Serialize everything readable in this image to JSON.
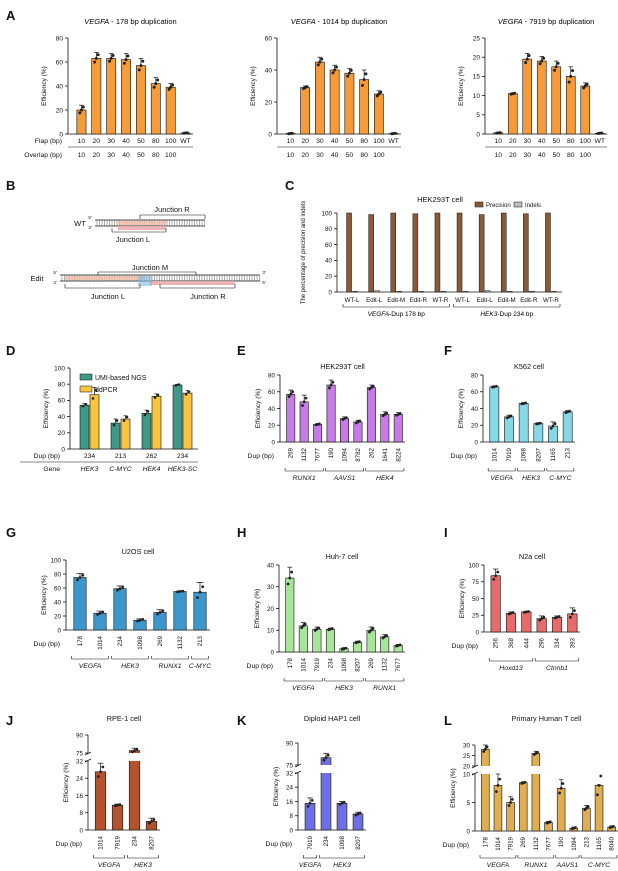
{
  "colors": {
    "orange": "#F59B3A",
    "brown": "#8C5A36",
    "gray": "#BDBDBD",
    "teal": "#3E9A87",
    "yellow": "#F9C53E",
    "purple": "#C77BE6",
    "cyan": "#86D8E6",
    "blue": "#3E97CC",
    "green": "#A7E69A",
    "red": "#E86B6B",
    "rust": "#B2532E",
    "indigo": "#6E6FE3",
    "gold": "#E0AE50",
    "dna_l": "#F1C0A8",
    "dna_r": "#E7A8A8"
  },
  "panels": {
    "A": {
      "label": "A"
    },
    "B": {
      "label": "B"
    },
    "C": {
      "label": "C"
    },
    "D": {
      "label": "D"
    },
    "E": {
      "label": "E"
    },
    "F": {
      "label": "F"
    },
    "G": {
      "label": "G"
    },
    "H": {
      "label": "H"
    },
    "I": {
      "label": "I"
    },
    "J": {
      "label": "J"
    },
    "K": {
      "label": "K"
    },
    "L": {
      "label": "L"
    }
  },
  "rowlabels": {
    "flap": "Flap (bp)",
    "overlap": "Overlap (bp)",
    "dup": "Dup (bp)",
    "gene": "Gene"
  },
  "diagram": {
    "wt_label": "WT",
    "edit_label": "Edit",
    "junction_l": "Junction L",
    "junction_r": "Junction R",
    "junction_m": "Junction M",
    "strand_5": "5'",
    "strand_3": "3'"
  },
  "chart_data": [
    {
      "id": "A1",
      "type": "bar",
      "title_gene": "VEGFA",
      "title_rest": " - 178 bp duplication",
      "ylabel": "Efficiency (%)",
      "ylim": [
        0,
        80
      ],
      "yticks": [
        0,
        20,
        40,
        60,
        80
      ],
      "categories": [
        "10",
        "20",
        "30",
        "40",
        "50",
        "80",
        "100",
        "WT"
      ],
      "overlap": [
        "10",
        "20",
        "30",
        "40",
        "50",
        "80",
        "100"
      ],
      "values": [
        20,
        63,
        63,
        62,
        57,
        42,
        39,
        0.8
      ],
      "errors": [
        4,
        5,
        4,
        5,
        6,
        5,
        3,
        0.3
      ],
      "color": "orange"
    },
    {
      "id": "A2",
      "type": "bar",
      "title_gene": "VEGFA",
      "title_rest": " - 1014 bp duplication",
      "ylabel": "Efficiency (%)",
      "ylim": [
        0,
        60
      ],
      "yticks": [
        0,
        20,
        40,
        60
      ],
      "categories": [
        "10",
        "20",
        "30",
        "40",
        "50",
        "80",
        "100",
        "WT"
      ],
      "overlap": [
        "10",
        "20",
        "30",
        "40",
        "50",
        "80",
        "100"
      ],
      "values": [
        0.3,
        29,
        45,
        40,
        38,
        34,
        25,
        0.3
      ],
      "errors": [
        0.2,
        1,
        3,
        3,
        3,
        6,
        2,
        0.2
      ],
      "color": "orange"
    },
    {
      "id": "A3",
      "type": "bar",
      "title_gene": "VEGFA",
      "title_rest": " - 7919 bp duplication",
      "ylabel": "Efficiency (%)",
      "ylim": [
        0,
        25
      ],
      "yticks": [
        0,
        5,
        10,
        15,
        20,
        25
      ],
      "categories": [
        "10",
        "20",
        "30",
        "40",
        "50",
        "80",
        "100",
        "WT"
      ],
      "overlap": [
        "10",
        "20",
        "30",
        "40",
        "50",
        "80",
        "100"
      ],
      "values": [
        0.3,
        10.5,
        19.5,
        19,
        17.5,
        15,
        12.5,
        0.2
      ],
      "errors": [
        0.1,
        0.2,
        1.5,
        1.2,
        1.5,
        2.5,
        0.8,
        0.1
      ],
      "color": "orange"
    },
    {
      "id": "C",
      "type": "bar",
      "title": "HEK293T cell",
      "ylabel": "The percentage of precision and indels",
      "ylim": [
        0,
        100
      ],
      "yticks": [
        0,
        20,
        40,
        60,
        80,
        100
      ],
      "categories": [
        "WT-L",
        "Edit-L",
        "Edit-M",
        "Edit-R",
        "WT-R",
        "WT-L",
        "Edit-L",
        "Edit-M",
        "Edit-R",
        "WT-R"
      ],
      "groups": [
        {
          "label": "VEGFA",
          "label_rest": "-Dup 178 bp"
        },
        {
          "label": "HEK3",
          "label_rest": "-Dup 234 bp"
        }
      ],
      "series": [
        {
          "name": "Precision",
          "values": [
            100,
            98,
            100,
            99,
            100,
            100,
            98,
            100,
            99,
            100
          ]
        },
        {
          "name": "Indels",
          "values": [
            0.3,
            1.5,
            0.2,
            0.8,
            0.3,
            0.2,
            1.6,
            0.3,
            0.9,
            0.2
          ]
        }
      ]
    },
    {
      "id": "D",
      "type": "bar",
      "ylabel": "Efficiency (%)",
      "ylim": [
        0,
        100
      ],
      "yticks": [
        0,
        20,
        40,
        60,
        80,
        100
      ],
      "dup": [
        "234",
        "213",
        "262",
        "234"
      ],
      "genes": [
        "HEK3",
        "C-MYC",
        "HEK4",
        "HEK3-SC"
      ],
      "series": [
        {
          "name": "UMI-based NGS",
          "values": [
            54,
            32,
            44,
            79
          ],
          "errors": [
            2,
            5,
            4,
            1
          ]
        },
        {
          "name": "ddPCR",
          "values": [
            67,
            37,
            65,
            69
          ],
          "errors": [
            9,
            4,
            3,
            3
          ]
        }
      ]
    },
    {
      "id": "E",
      "type": "bar",
      "title": "HEK293T cell",
      "ylabel": "Efficiency (%)",
      "ylim": [
        0,
        80
      ],
      "yticks": [
        0,
        20,
        40,
        60,
        80
      ],
      "categories": [
        "269",
        "1132",
        "7677",
        "190",
        "1094",
        "8782",
        "262",
        "1641",
        "8224"
      ],
      "values": [
        57,
        48,
        21,
        68,
        28,
        24,
        65,
        33,
        33
      ],
      "errors": [
        5,
        8,
        1,
        6,
        2,
        2,
        3,
        3,
        2
      ],
      "groups": [
        {
          "label": "RUNX1",
          "span": [
            0,
            2
          ]
        },
        {
          "label": "AAVS1",
          "span": [
            3,
            5
          ]
        },
        {
          "label": "HEK4",
          "span": [
            6,
            8
          ]
        }
      ]
    },
    {
      "id": "F",
      "type": "bar",
      "title": "K562 cell",
      "ylabel": "Efficiency (%)",
      "ylim": [
        0,
        80
      ],
      "yticks": [
        0,
        20,
        40,
        60,
        80
      ],
      "categories": [
        "1014",
        "7919",
        "1098",
        "8207",
        "1165",
        "213"
      ],
      "values": [
        66,
        30,
        46,
        22,
        19,
        36
      ],
      "errors": [
        1,
        2,
        1,
        1,
        5,
        1.5
      ],
      "groups": [
        {
          "label": "VEGFA",
          "span": [
            0,
            1
          ]
        },
        {
          "label": "HEK3",
          "span": [
            2,
            3
          ]
        },
        {
          "label": "C-MYC",
          "span": [
            4,
            5
          ]
        }
      ]
    },
    {
      "id": "G",
      "type": "bar",
      "title": "U2OS cell",
      "ylabel": "Efficiency (%)",
      "ylim": [
        0,
        100
      ],
      "yticks": [
        0,
        20,
        40,
        60,
        80,
        100
      ],
      "categories": [
        "178",
        "1014",
        "234",
        "1098",
        "269",
        "1132",
        "213"
      ],
      "values": [
        75,
        24,
        59,
        14,
        25,
        55,
        54
      ],
      "errors": [
        6,
        3,
        4,
        2,
        4,
        1,
        14
      ],
      "groups": [
        {
          "label": "VEGFA",
          "span": [
            0,
            1
          ]
        },
        {
          "label": "HEK3",
          "span": [
            2,
            3
          ]
        },
        {
          "label": "RUNX1",
          "span": [
            4,
            5
          ]
        },
        {
          "label": "C-MYC",
          "span": [
            6,
            6
          ]
        }
      ]
    },
    {
      "id": "H",
      "type": "bar",
      "title": "Huh-7 cell",
      "ylabel": "Efficiency (%)",
      "ylim": [
        0,
        40
      ],
      "yticks": [
        0,
        10,
        20,
        30,
        40
      ],
      "categories": [
        "178",
        "1014",
        "7919",
        "234",
        "1098",
        "8207",
        "269",
        "1132",
        "7677"
      ],
      "values": [
        34,
        12,
        10.5,
        10.5,
        1.5,
        4.5,
        10,
        7,
        3
      ],
      "errors": [
        5,
        1.5,
        1,
        0.5,
        0.5,
        0.5,
        1.5,
        1,
        0.5
      ],
      "groups": [
        {
          "label": "VEGFA",
          "span": [
            0,
            2
          ]
        },
        {
          "label": "HEK3",
          "span": [
            3,
            5
          ]
        },
        {
          "label": "RUNX1",
          "span": [
            6,
            8
          ]
        }
      ]
    },
    {
      "id": "I",
      "type": "bar",
      "title": "N2a cell",
      "ylabel": "Efficiency (%)",
      "ylim": [
        0,
        100
      ],
      "yticks": [
        0,
        25,
        50,
        75,
        100
      ],
      "categories": [
        "256",
        "368",
        "444",
        "296",
        "334",
        "393"
      ],
      "values": [
        84,
        28,
        30,
        20,
        22,
        27
      ],
      "errors": [
        10,
        2,
        1,
        4,
        2,
        9
      ],
      "groups": [
        {
          "label": "Hoxd13",
          "span": [
            0,
            2
          ]
        },
        {
          "label": "Ctnnb1",
          "span": [
            3,
            5
          ]
        }
      ]
    },
    {
      "id": "J",
      "type": "bar",
      "title": "RPE-1 cell",
      "ylabel": "Efficiency (%)",
      "broken": true,
      "ylim_low": [
        0,
        32
      ],
      "yticks_low": [
        0,
        8,
        16,
        24,
        32
      ],
      "ylim_high": [
        75,
        90
      ],
      "yticks_high": [
        75,
        90
      ],
      "categories": [
        "1014",
        "7919",
        "234",
        "8207"
      ],
      "values": [
        27,
        11.5,
        77,
        4
      ],
      "errors": [
        4,
        0.5,
        2,
        1.5
      ],
      "groups": [
        {
          "label": "VEGFA",
          "span": [
            0,
            1
          ]
        },
        {
          "label": "HEK3",
          "span": [
            2,
            3
          ]
        }
      ]
    },
    {
      "id": "K",
      "type": "bar",
      "title": "Diploid HAP1 cell",
      "ylabel": "Efficiency (%)",
      "broken": true,
      "ylim_low": [
        0,
        32
      ],
      "yticks_low": [
        0,
        8,
        16,
        24,
        32
      ],
      "ylim_high": [
        75,
        90
      ],
      "yticks_high": [
        75,
        90
      ],
      "categories": [
        "7919",
        "234",
        "1098",
        "8207"
      ],
      "values": [
        15,
        80,
        15,
        9
      ],
      "errors": [
        3,
        3,
        1,
        1
      ],
      "groups": [
        {
          "label": "VEGFA",
          "span": [
            0,
            0
          ]
        },
        {
          "label": "HEK3",
          "span": [
            1,
            3
          ]
        }
      ]
    },
    {
      "id": "L",
      "type": "bar",
      "title": "Primary Human T cell",
      "ylabel": "Efficiency (%)",
      "broken": true,
      "ylim_low": [
        0,
        10
      ],
      "yticks_low": [
        0,
        5,
        10
      ],
      "ylim_high": [
        20,
        30
      ],
      "yticks_high": [
        20,
        25,
        30
      ],
      "categories": [
        "178",
        "1014",
        "7919",
        "269",
        "1132",
        "7677",
        "190",
        "1094",
        "213",
        "1165",
        "8040"
      ],
      "values": [
        28,
        8,
        5,
        12,
        26,
        1.5,
        7.5,
        0.5,
        4,
        8,
        0.7
      ],
      "errors": [
        2,
        2,
        1,
        0.5,
        1,
        0.2,
        1.5,
        0.2,
        0.5,
        3,
        0.2
      ],
      "groups": [
        {
          "label": "VEGFA",
          "span": [
            0,
            2
          ]
        },
        {
          "label": "RUNX1",
          "span": [
            3,
            5
          ]
        },
        {
          "label": "AAVS1",
          "span": [
            6,
            7
          ]
        },
        {
          "label": "C-MYC",
          "span": [
            8,
            10
          ]
        }
      ]
    }
  ]
}
